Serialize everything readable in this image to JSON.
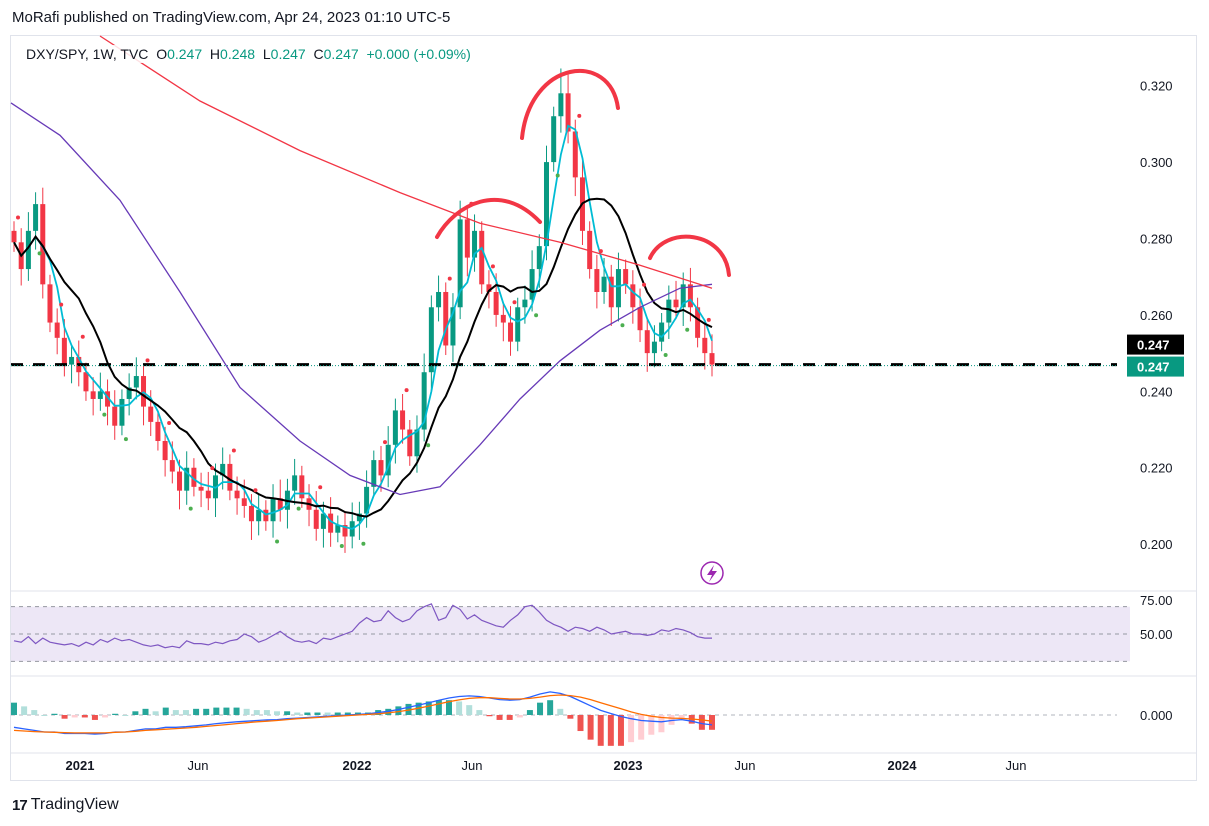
{
  "header": {
    "publisher": "MoRafi published on TradingView.com, Apr 24, 2023 01:10 UTC-5"
  },
  "legend": {
    "symbol": "DXY/SPY, 1W, TVC",
    "o_label": "O",
    "o_value": "0.247",
    "h_label": "H",
    "h_value": "0.248",
    "l_label": "L",
    "l_value": "0.247",
    "c_label": "C",
    "c_value": "0.247",
    "change": "+0.000 (+0.09%)"
  },
  "footer": {
    "brand": "TradingView"
  },
  "colors": {
    "up": "#089981",
    "down": "#f23645",
    "ma_fast": "#00bcd4",
    "ma_mid": "#000000",
    "ma_slow": "#673ab7",
    "ma_long": "#f23645",
    "rsi": "#7e57c2",
    "rsi_band": "#ede7f6",
    "macd": "#2962ff",
    "signal": "#ff6d00",
    "annotation": "#f23645"
  },
  "chart_data": [
    {
      "type": "candlestick",
      "panel": "price",
      "x_ticks": [
        "2021",
        "Jun",
        "2022",
        "Jun",
        "2023",
        "Jun",
        "2024",
        "Jun"
      ],
      "y_ticks": [
        "0.320",
        "0.300",
        "0.280",
        "0.260",
        "0.240",
        "0.220",
        "0.200"
      ],
      "ylim": [
        0.188,
        0.333
      ],
      "price_labels": [
        "0.247",
        "0.247"
      ],
      "horizontal_line": 0.247,
      "weekly_close": [
        0.279,
        0.272,
        0.282,
        0.289,
        0.268,
        0.258,
        0.254,
        0.247,
        0.249,
        0.245,
        0.24,
        0.238,
        0.24,
        0.236,
        0.231,
        0.238,
        0.241,
        0.244,
        0.236,
        0.232,
        0.227,
        0.222,
        0.219,
        0.214,
        0.22,
        0.215,
        0.214,
        0.212,
        0.218,
        0.221,
        0.214,
        0.212,
        0.21,
        0.206,
        0.209,
        0.206,
        0.212,
        0.209,
        0.214,
        0.218,
        0.212,
        0.209,
        0.204,
        0.208,
        0.203,
        0.205,
        0.202,
        0.206,
        0.208,
        0.215,
        0.222,
        0.218,
        0.226,
        0.235,
        0.23,
        0.223,
        0.23,
        0.245,
        0.262,
        0.266,
        0.252,
        0.262,
        0.285,
        0.275,
        0.282,
        0.268,
        0.266,
        0.26,
        0.258,
        0.253,
        0.262,
        0.264,
        0.272,
        0.278,
        0.3,
        0.312,
        0.318,
        0.308,
        0.296,
        0.282,
        0.272,
        0.266,
        0.27,
        0.262,
        0.272,
        0.268,
        0.262,
        0.256,
        0.25,
        0.253,
        0.258,
        0.264,
        0.262,
        0.268,
        0.262,
        0.254,
        0.25,
        0.247
      ]
    },
    {
      "type": "line",
      "panel": "rsi",
      "y_ticks": [
        "75.00",
        "50.00"
      ],
      "ylim": [
        20,
        80
      ],
      "band": [
        30,
        70
      ],
      "values": [
        45,
        44,
        48,
        43,
        47,
        44,
        43,
        42,
        43,
        41,
        44,
        42,
        46,
        44,
        47,
        45,
        46,
        44,
        42,
        41,
        42,
        40,
        41,
        40,
        45,
        43,
        43,
        42,
        44,
        43,
        45,
        46,
        50,
        48,
        44,
        46,
        49,
        52,
        48,
        45,
        44,
        45,
        43,
        47,
        46,
        48,
        50,
        52,
        58,
        62,
        59,
        60,
        67,
        62,
        59,
        61,
        67,
        70,
        72,
        60,
        62,
        71,
        68,
        61,
        64,
        60,
        58,
        56,
        55,
        60,
        64,
        70,
        71,
        66,
        60,
        57,
        55,
        52,
        55,
        54,
        52,
        55,
        53,
        50,
        51,
        52,
        50,
        50,
        49,
        50,
        53,
        52,
        54,
        53,
        51,
        48,
        47,
        47
      ]
    },
    {
      "type": "line",
      "panel": "macd",
      "y_ticks": [
        "0.000"
      ],
      "ylim": [
        -0.012,
        0.012
      ],
      "series": [
        {
          "values": [
            -0.004,
            -0.0045,
            -0.005,
            -0.0055,
            -0.0055,
            -0.006,
            -0.006,
            -0.006,
            -0.0062,
            -0.006,
            -0.0055,
            -0.0055,
            -0.005,
            -0.0045,
            -0.0045,
            -0.004,
            -0.004,
            -0.0038,
            -0.0035,
            -0.0032,
            -0.0028,
            -0.0025,
            -0.0022,
            -0.002,
            -0.0018,
            -0.0016,
            -0.0015,
            -0.0012,
            -0.001,
            -0.0008,
            -0.0006,
            -0.0004,
            -0.0002,
            0.0,
            0.0002,
            0.0004,
            0.0008,
            0.0012,
            0.0018,
            0.0025,
            0.0032,
            0.004,
            0.0048,
            0.0055,
            0.006,
            0.0062,
            0.006,
            0.0055,
            0.005,
            0.0048,
            0.005,
            0.0058,
            0.0068,
            0.0075,
            0.007,
            0.006,
            0.0045,
            0.003,
            0.0015,
            0.0005,
            -0.0005,
            -0.0012,
            -0.0018,
            -0.002,
            -0.0022,
            -0.0018,
            -0.0015,
            -0.002,
            -0.0028,
            -0.0032
          ]
        },
        {
          "values": [
            -0.005,
            -0.0052,
            -0.0054,
            -0.0055,
            -0.0056,
            -0.0057,
            -0.0058,
            -0.0058,
            -0.0058,
            -0.0058,
            -0.0056,
            -0.0055,
            -0.0053,
            -0.005,
            -0.0048,
            -0.0046,
            -0.0044,
            -0.0042,
            -0.004,
            -0.0037,
            -0.0034,
            -0.0031,
            -0.0028,
            -0.0025,
            -0.0022,
            -0.002,
            -0.0018,
            -0.0015,
            -0.0012,
            -0.001,
            -0.0008,
            -0.0006,
            -0.0004,
            -0.0002,
            0.0,
            0.0002,
            0.0004,
            0.0007,
            0.0011,
            0.0016,
            0.0022,
            0.0029,
            0.0036,
            0.0043,
            0.0049,
            0.0054,
            0.0056,
            0.0056,
            0.0054,
            0.0052,
            0.0052,
            0.0054,
            0.0058,
            0.0063,
            0.0065,
            0.0063,
            0.0058,
            0.005,
            0.004,
            0.003,
            0.002,
            0.001,
            0.0002,
            -0.0004,
            -0.0008,
            -0.001,
            -0.0011,
            -0.0013,
            -0.0016,
            -0.002
          ]
        }
      ]
    }
  ]
}
